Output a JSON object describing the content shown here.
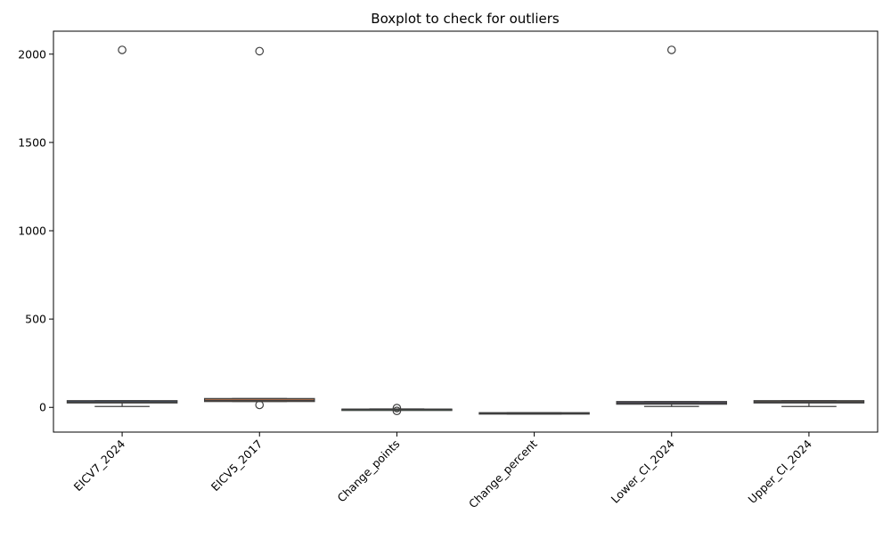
{
  "chart_data": {
    "type": "boxplot",
    "title": "Boxplot to check for outliers",
    "xlabel": "",
    "ylabel": "",
    "categories": [
      "EICV7_2024",
      "EICV5_2017",
      "Change_points",
      "Change_percent",
      "Lower_CI_2024",
      "Upper_CI_2024"
    ],
    "ylim": [
      -140,
      2130
    ],
    "yticks": [
      0,
      500,
      1000,
      1500,
      2000
    ],
    "grid": false,
    "boxes": [
      {
        "category": "EICV7_2024",
        "whisker_low": 5,
        "q1": 25,
        "median": 30,
        "q3": 38,
        "whisker_high": 38,
        "outliers": [
          2024
        ],
        "color": "#4c72b0"
      },
      {
        "category": "EICV5_2017",
        "whisker_low": 33,
        "q1": 33,
        "median": 40,
        "q3": 50,
        "whisker_high": 50,
        "outliers": [
          2017,
          14
        ],
        "color": "#dd8452"
      },
      {
        "category": "Change_points",
        "whisker_low": -13,
        "q1": -12,
        "median": -11,
        "q3": -10,
        "whisker_high": -9,
        "outliers": [
          -4,
          -20
        ],
        "color": "#55a868"
      },
      {
        "category": "Change_percent",
        "whisker_low": -38,
        "q1": -38,
        "median": -34,
        "q3": -30,
        "whisker_high": -30,
        "outliers": [],
        "color": "#c44e52"
      },
      {
        "category": "Lower_CI_2024",
        "whisker_low": 5,
        "q1": 18,
        "median": 25,
        "q3": 33,
        "whisker_high": 33,
        "outliers": [
          2024
        ],
        "color": "#8172b3"
      },
      {
        "category": "Upper_CI_2024",
        "whisker_low": 5,
        "q1": 25,
        "median": 30,
        "q3": 38,
        "whisker_high": 38,
        "outliers": [],
        "color": "#937860"
      }
    ]
  }
}
